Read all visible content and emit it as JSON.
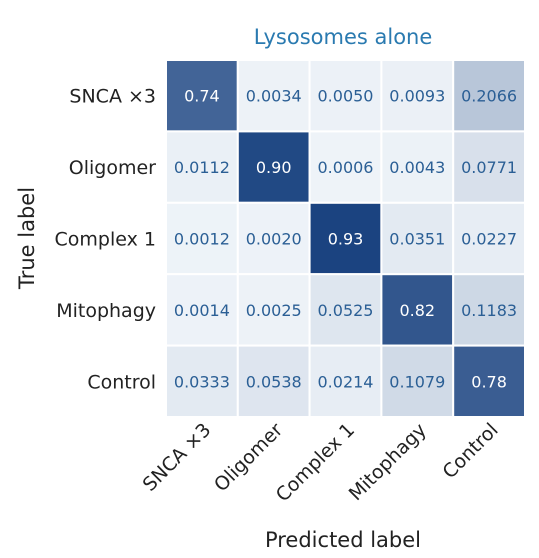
{
  "chart_data": {
    "type": "heatmap",
    "title": "Lysosomes alone",
    "xlabel": "Predicted label",
    "ylabel": "True label",
    "x_categories": [
      "SNCA ×3",
      "Oligomer",
      "Complex 1",
      "Mitophagy",
      "Control"
    ],
    "y_categories": [
      "SNCA ×3",
      "Oligomer",
      "Complex 1",
      "Mitophagy",
      "Control"
    ],
    "values": [
      [
        0.74,
        0.0034,
        0.005,
        0.0093,
        0.2066
      ],
      [
        0.0112,
        0.9,
        0.0006,
        0.0043,
        0.0771
      ],
      [
        0.0012,
        0.002,
        0.93,
        0.0351,
        0.0227
      ],
      [
        0.0014,
        0.0025,
        0.0525,
        0.82,
        0.1183
      ],
      [
        0.0333,
        0.0538,
        0.0214,
        0.1079,
        0.78
      ]
    ],
    "cell_labels": [
      [
        "0.74",
        "0.0034",
        "0.0050",
        "0.0093",
        "0.2066"
      ],
      [
        "0.0112",
        "0.90",
        "0.0006",
        "0.0043",
        "0.0771"
      ],
      [
        "0.0012",
        "0.0020",
        "0.93",
        "0.0351",
        "0.0227"
      ],
      [
        "0.0014",
        "0.0025",
        "0.0525",
        "0.82",
        "0.1183"
      ],
      [
        "0.0333",
        "0.0538",
        "0.0214",
        "0.1079",
        "0.78"
      ]
    ],
    "colormap": "Blues",
    "colors": {
      "title": "#2a7ab0",
      "low": "#eef3f8",
      "high": "#17407e",
      "text_dark": "#2b5f95",
      "text_light": "#ffffff"
    }
  }
}
